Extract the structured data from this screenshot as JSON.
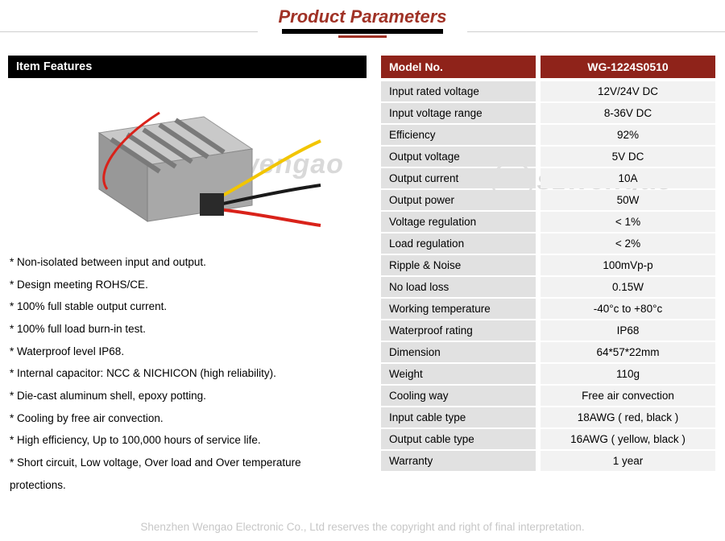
{
  "page": {
    "title": "Product Parameters",
    "title_color": "#a03226",
    "footer": "Shenzhen Wengao Electronic Co., Ltd reserves the copyright and right of final interpretation.",
    "footer_color": "#c7c7c7",
    "background": "#ffffff"
  },
  "features": {
    "header": "Item Features",
    "header_bg": "#000000",
    "header_color": "#ffffff",
    "items": [
      "* Non-isolated between input and output.",
      "* Design meeting ROHS/CE.",
      "* 100% full stable output current.",
      "* 100% full load burn-in test.",
      "* Waterproof level IP68.",
      "* Internal capacitor: NCC & NICHICON (high reliability).",
      "* Die-cast aluminum shell, epoxy potting.",
      "* Cooling by free air convection.",
      "* High efficiency, Up to 100,000 hours of service life.",
      "* Short circuit, Low voltage, Over load and Over temperature",
      "  protections."
    ]
  },
  "specs": {
    "header_label": "Model No.",
    "header_value": "WG-1224S0510",
    "header_bg": "#8f231a",
    "header_color": "#ffffff",
    "label_bg": "#e1e1e1",
    "value_bg": "#f2f2f2",
    "rows": [
      {
        "label": "Input rated voltage",
        "value": "12V/24V DC"
      },
      {
        "label": "Input voltage range",
        "value": "8-36V DC"
      },
      {
        "label": "Efficiency",
        "value": "92%"
      },
      {
        "label": "Output voltage",
        "value": "5V DC"
      },
      {
        "label": "Output current",
        "value": "10A"
      },
      {
        "label": "Output power",
        "value": "50W"
      },
      {
        "label": "Voltage regulation",
        "value": "< 1%"
      },
      {
        "label": "Load regulation",
        "value": "< 2%"
      },
      {
        "label": "Ripple & Noise",
        "value": "100mVp-p"
      },
      {
        "label": "No load loss",
        "value": "0.15W"
      },
      {
        "label": "Working temperature",
        "value": "-40°c to +80°c"
      },
      {
        "label": "Waterproof rating",
        "value": "IP68"
      },
      {
        "label": "Dimension",
        "value": "64*57*22mm"
      },
      {
        "label": "Weight",
        "value": "110g"
      },
      {
        "label": "Cooling way",
        "value": "Free air convection"
      },
      {
        "label": "Input cable type",
        "value": "18AWG ( red, black )"
      },
      {
        "label": "Output cable type",
        "value": "16AWG ( yellow, black )"
      },
      {
        "label": "Warranty",
        "value": "1 year"
      }
    ]
  },
  "watermark": {
    "text": "szwengao",
    "color": "#d9d9d9"
  },
  "product_image": {
    "shell_color": "#b8b8b8",
    "shell_highlight": "#dedede",
    "shell_shadow": "#8a8a8a",
    "wire_red": "#d9221a",
    "wire_yellow": "#f2c500",
    "wire_black": "#1a1a1a"
  }
}
